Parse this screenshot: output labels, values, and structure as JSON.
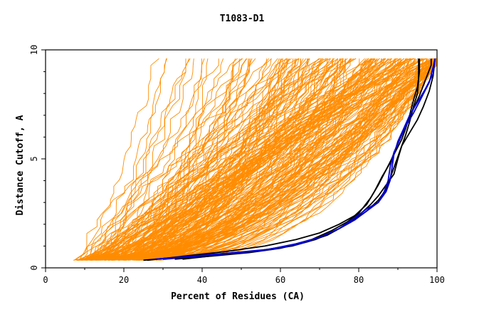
{
  "chart_data": {
    "type": "line",
    "title": "T1083-D1",
    "xlabel": "Percent of Residues (CA)",
    "ylabel": "Distance Cutoff, A",
    "xlim": [
      0,
      100
    ],
    "ylim": [
      0,
      10
    ],
    "xticks": [
      0,
      20,
      40,
      60,
      80,
      100
    ],
    "yticks": [
      0,
      5,
      10
    ],
    "grid": false,
    "legend": "none",
    "colors": {
      "background_models": "#ff8c00",
      "highlight_black": "#000000",
      "highlight_blue": "#0000cd",
      "axes": "#000000"
    },
    "highlight_series": [
      {
        "color_key": "highlight_black",
        "points": [
          [
            25,
            0.35
          ],
          [
            35,
            0.5
          ],
          [
            45,
            0.6
          ],
          [
            55,
            0.8
          ],
          [
            62,
            1.0
          ],
          [
            68,
            1.3
          ],
          [
            73,
            1.7
          ],
          [
            77,
            2.1
          ],
          [
            80,
            2.5
          ],
          [
            83,
            3.2
          ],
          [
            85,
            3.8
          ],
          [
            87,
            4.5
          ],
          [
            89,
            5.2
          ],
          [
            91,
            5.9
          ],
          [
            92,
            6.4
          ],
          [
            93,
            7.0
          ],
          [
            94,
            7.7
          ],
          [
            95,
            8.3
          ],
          [
            95.5,
            9.0
          ],
          [
            95.5,
            9.6
          ]
        ]
      },
      {
        "color_key": "highlight_black",
        "points": [
          [
            26,
            0.35
          ],
          [
            36,
            0.55
          ],
          [
            46,
            0.75
          ],
          [
            56,
            1.0
          ],
          [
            64,
            1.3
          ],
          [
            70,
            1.6
          ],
          [
            75,
            2.0
          ],
          [
            79,
            2.4
          ],
          [
            82,
            2.9
          ],
          [
            84,
            3.5
          ],
          [
            86,
            4.2
          ],
          [
            88,
            4.8
          ],
          [
            89.5,
            5.5
          ],
          [
            91,
            6.1
          ],
          [
            92.5,
            6.7
          ],
          [
            94,
            7.3
          ],
          [
            95.5,
            7.9
          ],
          [
            97,
            8.6
          ],
          [
            98.5,
            9.3
          ],
          [
            98.5,
            9.6
          ]
        ]
      },
      {
        "color_key": "highlight_black",
        "points": [
          [
            33,
            0.4
          ],
          [
            43,
            0.55
          ],
          [
            52,
            0.7
          ],
          [
            60,
            0.9
          ],
          [
            67,
            1.2
          ],
          [
            72,
            1.5
          ],
          [
            76,
            1.9
          ],
          [
            80,
            2.4
          ],
          [
            83,
            2.9
          ],
          [
            85,
            3.3
          ],
          [
            87,
            3.8
          ],
          [
            89,
            4.3
          ],
          [
            90,
            5.0
          ],
          [
            91,
            5.6
          ],
          [
            93,
            6.2
          ],
          [
            95,
            6.8
          ],
          [
            96.5,
            7.4
          ],
          [
            98,
            8.1
          ],
          [
            99,
            8.8
          ],
          [
            99.5,
            9.6
          ]
        ]
      },
      {
        "color_key": "highlight_black",
        "points": [
          [
            35,
            0.4
          ],
          [
            45,
            0.6
          ],
          [
            55,
            0.8
          ],
          [
            63,
            1.0
          ],
          [
            69,
            1.3
          ],
          [
            74,
            1.7
          ],
          [
            78,
            2.1
          ],
          [
            82,
            2.6
          ],
          [
            85,
            3.1
          ],
          [
            87,
            3.6
          ],
          [
            88,
            4.1
          ],
          [
            89,
            4.6
          ],
          [
            90,
            5.1
          ],
          [
            91,
            5.6
          ],
          [
            92,
            6.1
          ],
          [
            93,
            6.7
          ],
          [
            94,
            7.4
          ],
          [
            95,
            8.0
          ],
          [
            95.3,
            8.6
          ],
          [
            95.3,
            9.6
          ]
        ]
      },
      {
        "color_key": "highlight_blue",
        "points": [
          [
            30,
            0.4
          ],
          [
            40,
            0.55
          ],
          [
            50,
            0.7
          ],
          [
            58,
            0.85
          ],
          [
            65,
            1.1
          ],
          [
            70,
            1.4
          ],
          [
            75,
            1.8
          ],
          [
            79,
            2.3
          ],
          [
            82,
            2.7
          ],
          [
            85,
            3.0
          ],
          [
            87,
            3.5
          ],
          [
            88,
            4.0
          ],
          [
            88.5,
            4.6
          ],
          [
            89,
            5.2
          ],
          [
            90,
            5.8
          ],
          [
            91.5,
            6.4
          ],
          [
            93,
            7.0
          ],
          [
            95,
            7.6
          ],
          [
            97,
            8.2
          ],
          [
            99,
            8.9
          ],
          [
            99.5,
            9.6
          ]
        ]
      },
      {
        "color_key": "highlight_blue",
        "points": [
          [
            28,
            0.4
          ],
          [
            38,
            0.55
          ],
          [
            48,
            0.7
          ],
          [
            57,
            0.85
          ],
          [
            64,
            1.1
          ],
          [
            70,
            1.4
          ],
          [
            75,
            1.8
          ],
          [
            79,
            2.2
          ],
          [
            82,
            2.6
          ],
          [
            85,
            3.0
          ],
          [
            86.5,
            3.5
          ],
          [
            87.5,
            4.0
          ],
          [
            88,
            4.6
          ],
          [
            89,
            5.3
          ],
          [
            90.5,
            5.9
          ],
          [
            92,
            6.5
          ],
          [
            94,
            7.1
          ],
          [
            96,
            7.8
          ],
          [
            98,
            8.5
          ],
          [
            99,
            9.2
          ],
          [
            99.5,
            9.6
          ]
        ]
      }
    ]
  }
}
